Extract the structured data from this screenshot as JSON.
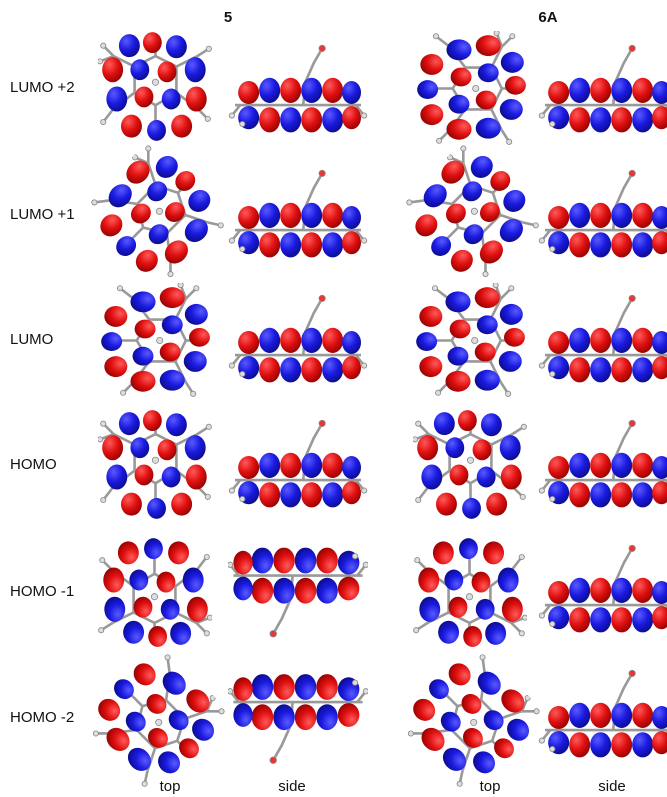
{
  "columns": [
    "5",
    "6A"
  ],
  "rows": [
    "LUMO +2",
    "LUMO +1",
    "LUMO",
    "HOMO",
    "HOMO -1",
    "HOMO -2"
  ],
  "footer": [
    "top",
    "side",
    "top",
    "side"
  ]
}
